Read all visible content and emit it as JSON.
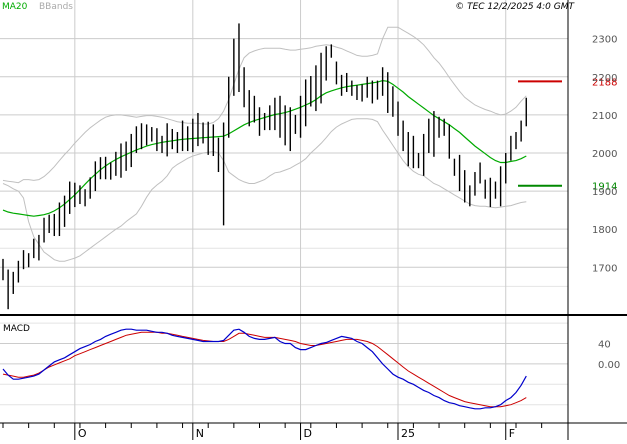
{
  "header": {
    "ma_label": "MA20",
    "bb_label": "BBands",
    "copyright": "© TEC 12/2/2025 4:0 GMT"
  },
  "colors": {
    "ma": "#00aa00",
    "bands": "#c0c0c0",
    "bars": "#000000",
    "resistance": "#cc0000",
    "support": "#008800",
    "macd_line": "#0000cc",
    "signal_line": "#cc0000",
    "grid": "#cccccc",
    "axis_text": "#555555"
  },
  "chart_data": [
    {
      "type": "line",
      "name": "price",
      "ylim": [
        1580,
        2370
      ],
      "y_ticks": [
        1700,
        1800,
        1900,
        2000,
        2100,
        2200,
        2300
      ],
      "x_ticks": [
        "O",
        "N",
        "D",
        "25",
        "F"
      ],
      "x_tick_index": [
        14,
        37,
        58,
        77,
        98
      ],
      "resistance": {
        "value": 2188,
        "label": "2188",
        "color": "#cc0000"
      },
      "support": {
        "value": 1914,
        "label": "1914",
        "color": "#008800"
      },
      "bars": [
        [
          1722,
          1666
        ],
        [
          1694,
          1590
        ],
        [
          1688,
          1630
        ],
        [
          1717,
          1660
        ],
        [
          1745,
          1695
        ],
        [
          1737,
          1700
        ],
        [
          1775,
          1724
        ],
        [
          1785,
          1718
        ],
        [
          1830,
          1765
        ],
        [
          1838,
          1790
        ],
        [
          1840,
          1782
        ],
        [
          1870,
          1782
        ],
        [
          1888,
          1806
        ],
        [
          1925,
          1840
        ],
        [
          1922,
          1858
        ],
        [
          1915,
          1866
        ],
        [
          1905,
          1860
        ],
        [
          1936,
          1880
        ],
        [
          1978,
          1900
        ],
        [
          1989,
          1931
        ],
        [
          1990,
          1931
        ],
        [
          1975,
          1930
        ],
        [
          2003,
          1940
        ],
        [
          2025,
          1935
        ],
        [
          2030,
          1953
        ],
        [
          2050,
          1963
        ],
        [
          2070,
          2000
        ],
        [
          2078,
          2010
        ],
        [
          2075,
          2020
        ],
        [
          2068,
          2030
        ],
        [
          2065,
          2005
        ],
        [
          2045,
          2000
        ],
        [
          2078,
          1991
        ],
        [
          2063,
          2010
        ],
        [
          2055,
          2000
        ],
        [
          2085,
          2005
        ],
        [
          2070,
          2005
        ],
        [
          2090,
          2002
        ],
        [
          2105,
          2018
        ],
        [
          2080,
          2025
        ],
        [
          2082,
          1995
        ],
        [
          2075,
          1992
        ],
        [
          2040,
          1950
        ],
        [
          2080,
          1810
        ],
        [
          2200,
          2040
        ],
        [
          2300,
          2150
        ],
        [
          2340,
          2160
        ],
        [
          2225,
          2120
        ],
        [
          2165,
          2070
        ],
        [
          2150,
          2080
        ],
        [
          2120,
          2045
        ],
        [
          2105,
          2060
        ],
        [
          2125,
          2060
        ],
        [
          2145,
          2060
        ],
        [
          2150,
          2040
        ],
        [
          2125,
          2020
        ],
        [
          2120,
          2005
        ],
        [
          2100,
          2050
        ],
        [
          2150,
          2040
        ],
        [
          2193,
          2070
        ],
        [
          2202,
          2122
        ],
        [
          2230,
          2110
        ],
        [
          2263,
          2130
        ],
        [
          2280,
          2190
        ],
        [
          2285,
          2250
        ],
        [
          2240,
          2180
        ],
        [
          2205,
          2150
        ],
        [
          2210,
          2160
        ],
        [
          2190,
          2150
        ],
        [
          2178,
          2139
        ],
        [
          2180,
          2135
        ],
        [
          2200,
          2145
        ],
        [
          2190,
          2130
        ],
        [
          2190,
          2140
        ],
        [
          2225,
          2150
        ],
        [
          2212,
          2105
        ],
        [
          2175,
          2095
        ],
        [
          2135,
          2045
        ],
        [
          2085,
          2005
        ],
        [
          2055,
          1965
        ],
        [
          2045,
          1960
        ],
        [
          2000,
          1960
        ],
        [
          2050,
          1940
        ],
        [
          2090,
          2000
        ],
        [
          2110,
          1990
        ],
        [
          2095,
          2040
        ],
        [
          2090,
          2045
        ],
        [
          2075,
          1985
        ],
        [
          1985,
          1940
        ],
        [
          1995,
          1900
        ],
        [
          1955,
          1870
        ],
        [
          1915,
          1860
        ],
        [
          1950,
          1888
        ],
        [
          1975,
          1920
        ],
        [
          1930,
          1880
        ],
        [
          1935,
          1858
        ],
        [
          1925,
          1880
        ],
        [
          1965,
          1860
        ],
        [
          2000,
          1920
        ],
        [
          2045,
          1980
        ],
        [
          2055,
          2010
        ],
        [
          2085,
          2030
        ],
        [
          2145,
          2070
        ]
      ],
      "ma20": [
        1850,
        1845,
        1842,
        1840,
        1838,
        1836,
        1834,
        1836,
        1838,
        1842,
        1848,
        1856,
        1866,
        1878,
        1890,
        1904,
        1918,
        1932,
        1944,
        1956,
        1966,
        1975,
        1983,
        1990,
        1996,
        2002,
        2008,
        2013,
        2018,
        2022,
        2025,
        2028,
        2030,
        2032,
        2034,
        2036,
        2037,
        2038,
        2039,
        2040,
        2041,
        2042,
        2043,
        2044,
        2050,
        2058,
        2066,
        2074,
        2080,
        2085,
        2089,
        2093,
        2097,
        2101,
        2103,
        2106,
        2110,
        2115,
        2120,
        2126,
        2132,
        2140,
        2150,
        2158,
        2163,
        2167,
        2171,
        2174,
        2176,
        2178,
        2180,
        2182,
        2184,
        2186,
        2190,
        2188,
        2180,
        2170,
        2160,
        2148,
        2138,
        2128,
        2118,
        2108,
        2098,
        2090,
        2082,
        2074,
        2064,
        2054,
        2042,
        2030,
        2018,
        2008,
        1998,
        1988,
        1980,
        1975,
        1975,
        1978,
        1980,
        1985,
        1992
      ],
      "bb_upper": [
        1928,
        1926,
        1924,
        1922,
        1930,
        1930,
        1928,
        1930,
        1938,
        1950,
        1964,
        1980,
        1996,
        2010,
        2026,
        2040,
        2054,
        2066,
        2076,
        2086,
        2094,
        2098,
        2100,
        2100,
        2098,
        2096,
        2094,
        2096,
        2098,
        2098,
        2096,
        2094,
        2090,
        2086,
        2082,
        2080,
        2078,
        2078,
        2078,
        2076,
        2076,
        2080,
        2090,
        2110,
        2140,
        2180,
        2220,
        2250,
        2262,
        2268,
        2272,
        2275,
        2275,
        2275,
        2275,
        2272,
        2270,
        2270,
        2272,
        2274,
        2276,
        2280,
        2282,
        2284,
        2282,
        2278,
        2274,
        2268,
        2262,
        2256,
        2254,
        2254,
        2256,
        2260,
        2300,
        2330,
        2330,
        2330,
        2322,
        2314,
        2306,
        2296,
        2284,
        2268,
        2250,
        2236,
        2218,
        2198,
        2180,
        2162,
        2146,
        2136,
        2126,
        2120,
        2114,
        2110,
        2104,
        2100,
        2102,
        2110,
        2120,
        2136,
        2150
      ],
      "bb_lower": [
        1920,
        1914,
        1906,
        1900,
        1882,
        1820,
        1780,
        1760,
        1740,
        1730,
        1720,
        1716,
        1716,
        1720,
        1724,
        1730,
        1740,
        1750,
        1760,
        1770,
        1780,
        1790,
        1800,
        1808,
        1820,
        1830,
        1840,
        1860,
        1884,
        1904,
        1916,
        1926,
        1940,
        1960,
        1970,
        1978,
        1986,
        1992,
        1996,
        2000,
        2002,
        2004,
        2000,
        1980,
        1950,
        1940,
        1930,
        1924,
        1920,
        1920,
        1925,
        1930,
        1940,
        1948,
        1950,
        1955,
        1960,
        1968,
        1975,
        1985,
        2000,
        2012,
        2025,
        2040,
        2056,
        2068,
        2076,
        2082,
        2088,
        2090,
        2090,
        2090,
        2088,
        2082,
        2060,
        2040,
        2020,
        2000,
        1980,
        1964,
        1952,
        1944,
        1940,
        1930,
        1920,
        1914,
        1906,
        1898,
        1890,
        1882,
        1874,
        1866,
        1862,
        1860,
        1860,
        1858,
        1856,
        1858,
        1860,
        1862,
        1866,
        1870,
        1872
      ]
    },
    {
      "type": "line",
      "name": "MACD",
      "title": "MACD",
      "ylim": [
        -110,
        90
      ],
      "y_ticks": [
        0,
        40
      ],
      "y_tick_labels": [
        "0.00",
        "40"
      ],
      "macd": [
        -10,
        -22,
        -30,
        -30,
        -28,
        -26,
        -24,
        -20,
        -12,
        -4,
        4,
        8,
        12,
        18,
        24,
        30,
        34,
        38,
        44,
        48,
        54,
        58,
        62,
        66,
        68,
        68,
        66,
        66,
        66,
        64,
        62,
        62,
        60,
        56,
        54,
        52,
        50,
        48,
        46,
        44,
        44,
        44,
        44,
        46,
        56,
        66,
        68,
        62,
        54,
        50,
        48,
        48,
        50,
        52,
        44,
        40,
        40,
        32,
        28,
        28,
        32,
        36,
        40,
        42,
        46,
        50,
        54,
        52,
        50,
        44,
        40,
        32,
        24,
        12,
        0,
        -10,
        -20,
        -26,
        -30,
        -36,
        -40,
        -46,
        -52,
        -56,
        -62,
        -66,
        -72,
        -76,
        -78,
        -82,
        -84,
        -86,
        -88,
        -88,
        -86,
        -86,
        -84,
        -80,
        -72,
        -66,
        -56,
        -42,
        -24
      ],
      "signal": [
        -20,
        -22,
        -24,
        -26,
        -26,
        -24,
        -22,
        -18,
        -12,
        -6,
        -2,
        2,
        6,
        10,
        16,
        20,
        24,
        28,
        32,
        36,
        40,
        44,
        48,
        52,
        56,
        58,
        60,
        62,
        62,
        62,
        62,
        60,
        60,
        58,
        56,
        54,
        52,
        50,
        48,
        46,
        45,
        44,
        44,
        44,
        48,
        54,
        60,
        60,
        58,
        56,
        54,
        52,
        52,
        52,
        50,
        48,
        46,
        44,
        40,
        38,
        36,
        36,
        38,
        40,
        42,
        44,
        46,
        48,
        48,
        48,
        46,
        44,
        40,
        34,
        26,
        18,
        10,
        2,
        -6,
        -14,
        -20,
        -26,
        -32,
        -38,
        -44,
        -50,
        -56,
        -62,
        -66,
        -70,
        -74,
        -76,
        -78,
        -80,
        -82,
        -84,
        -84,
        -84,
        -82,
        -80,
        -76,
        -72,
        -66
      ]
    }
  ]
}
